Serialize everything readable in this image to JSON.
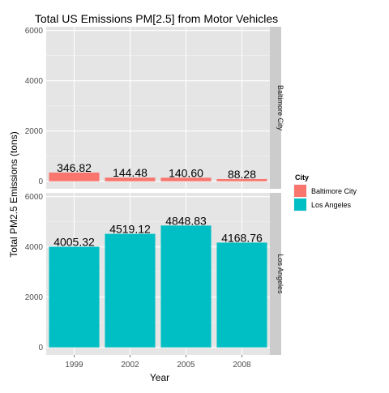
{
  "chart_data": {
    "type": "bar",
    "title": "Total US Emissions PM[2.5] from Motor Vehicles",
    "xlabel": "Year",
    "ylabel": "Total PM2.5 Emissions (tons)",
    "categories": [
      "1999",
      "2002",
      "2005",
      "2008"
    ],
    "ylim": [
      0,
      6000
    ],
    "yticks": [
      0,
      2000,
      4000,
      6000
    ],
    "grid": true,
    "legend": {
      "title": "City",
      "position": "right",
      "entries": [
        "Baltimore City",
        "Los Angeles"
      ]
    },
    "series": [
      {
        "name": "Baltimore City",
        "color": "#F8766D",
        "values": [
          346.82,
          144.48,
          140.6,
          88.28
        ],
        "labels": [
          "346.82",
          "144.48",
          "140.60",
          "88.28"
        ]
      },
      {
        "name": "Los Angeles",
        "color": "#00BFC4",
        "values": [
          4005.32,
          4519.12,
          4848.83,
          4168.76
        ],
        "labels": [
          "4005.32",
          "4519.12",
          "4848.83",
          "4168.76"
        ]
      }
    ]
  }
}
